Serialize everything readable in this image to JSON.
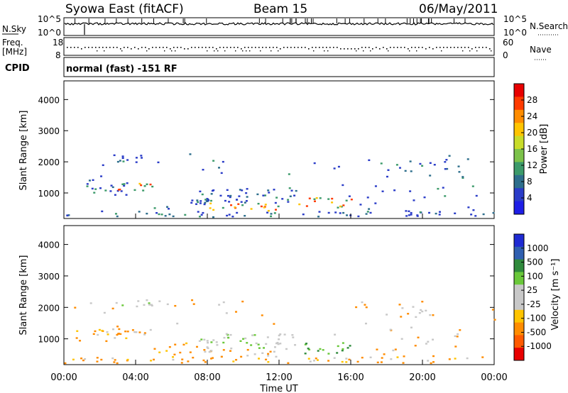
{
  "header": {
    "station": "Syowa East (fitACF)",
    "beam": "Beam 15",
    "date": "06/May/2011"
  },
  "top_panels": {
    "nsky_label": "N.Sky",
    "nsearch_label": "N.Search",
    "noise_axis_top": "10^5",
    "noise_axis_bottom": "10^0",
    "freq_label_line1": "Freq.",
    "freq_label_line2": "[MHz]",
    "freq_ticks": [
      "18",
      "8"
    ],
    "nave_label": "Nave",
    "nave_ticks": [
      "60",
      "0"
    ],
    "cpid_label": "CPID",
    "cpid_text": "normal (fast) -151 RF"
  },
  "chart_data": [
    {
      "type": "heatmap",
      "name": "power",
      "ylabel": "Slant Range [km]",
      "xlabel": "Time UT",
      "x_ticks": [
        "00:00",
        "04:00",
        "08:00",
        "12:00",
        "16:00",
        "20:00",
        "00:00"
      ],
      "y_ticks": [
        1000,
        2000,
        3000,
        4000
      ],
      "ylim": [
        180,
        4600
      ],
      "colorbar": {
        "label": "Power [dB]",
        "ticks": [
          "28",
          "24",
          "20",
          "16",
          "12",
          "8",
          "4"
        ],
        "colors": [
          "#e80000",
          "#ff3a00",
          "#ff8c00",
          "#ffc400",
          "#c8dc2a",
          "#7cc24a",
          "#3c9a6a",
          "#2d6e8c",
          "#2a3cc8",
          "#1e1ee6"
        ]
      }
    },
    {
      "type": "heatmap",
      "name": "velocity",
      "ylabel": "Slant Range [km]",
      "xlabel": "Time UT",
      "x_ticks": [
        "00:00",
        "04:00",
        "08:00",
        "12:00",
        "16:00",
        "20:00",
        "00:00"
      ],
      "y_ticks": [
        1000,
        2000,
        3000,
        4000
      ],
      "ylim": [
        180,
        4600
      ],
      "colorbar": {
        "label": "Velocity [m s⁻¹]",
        "ticks": [
          "1000",
          "500",
          "100",
          "25",
          "-25",
          "-100",
          "-500",
          "-1000"
        ],
        "colors": [
          "#1e2ad2",
          "#2f5fb0",
          "#2f8a3c",
          "#6ac83a",
          "#c8c8c8",
          "#c8c8c8",
          "#ffc400",
          "#ff8c00",
          "#ff5a00",
          "#e80000"
        ]
      }
    }
  ]
}
